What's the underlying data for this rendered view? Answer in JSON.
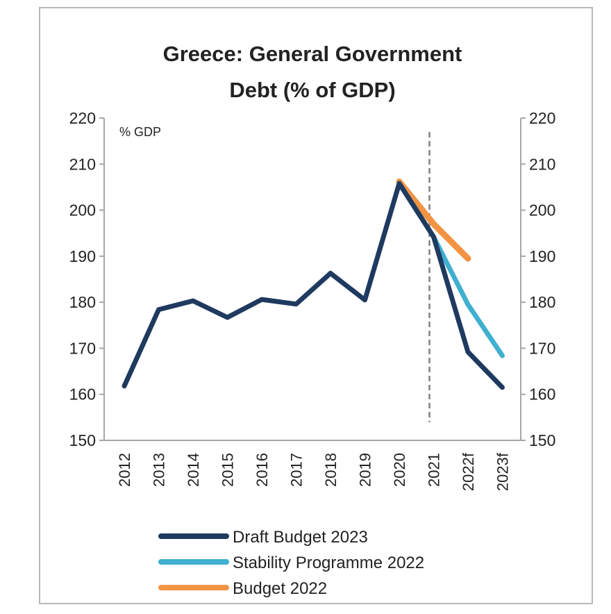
{
  "chart_data": {
    "type": "line",
    "title": "Greece: General Government Debt (% of GDP)",
    "title_lines": [
      "Greece: General Government",
      "Debt (% of GDP)"
    ],
    "ylabel": "% GDP",
    "xlabel": "",
    "categories": [
      "2012",
      "2013",
      "2014",
      "2015",
      "2016",
      "2017",
      "2018",
      "2019",
      "2020",
      "2021",
      "2022f",
      "2023f"
    ],
    "ylim": [
      150,
      220
    ],
    "yticks": [
      150,
      160,
      170,
      180,
      190,
      200,
      210,
      220
    ],
    "secondary_yaxis": true,
    "grid": false,
    "vertical_marker": {
      "category": "2021",
      "style": "dashed",
      "color": "#808080"
    },
    "legend_position": "bottom",
    "series": [
      {
        "name": "Draft Budget 2023",
        "color": "#1f3a5f",
        "values": [
          161.8,
          178.4,
          180.3,
          176.7,
          180.6,
          179.6,
          186.3,
          180.5,
          205.8,
          194.2,
          169.2,
          161.5
        ]
      },
      {
        "name": "Stability Programme 2022",
        "color": "#3fb0cf",
        "values": [
          null,
          null,
          null,
          null,
          null,
          null,
          null,
          null,
          205.8,
          194.2,
          179.5,
          168.4
        ]
      },
      {
        "name": "Budget 2022",
        "color": "#f29443",
        "values": [
          null,
          null,
          null,
          null,
          null,
          null,
          null,
          null,
          206.2,
          197.0,
          189.5,
          null
        ]
      }
    ]
  }
}
